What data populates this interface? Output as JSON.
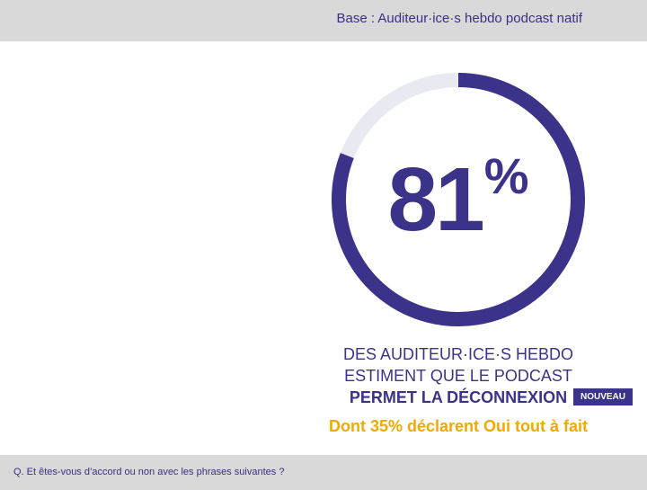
{
  "header": {
    "base": "Base : Auditeur·ice·s hebdo podcast natif"
  },
  "chart_data": {
    "type": "pie",
    "value": 81,
    "remainder": 19,
    "display_value": "81",
    "unit": "%",
    "colors": {
      "filled": "#3b3389",
      "track": "#e9e9f2"
    }
  },
  "caption": {
    "line1": "DES AUDITEUR·ICE·S HEBDO",
    "line2": "ESTIMENT QUE LE PODCAST",
    "line3": "PERMET LA DÉCONNEXION",
    "badge": "NOUVEAU"
  },
  "subtext": "Dont 35% déclarent Oui tout à fait",
  "footer": {
    "question": "Q. Et êtes-vous d’accord ou non avec les phrases suivantes ?"
  }
}
